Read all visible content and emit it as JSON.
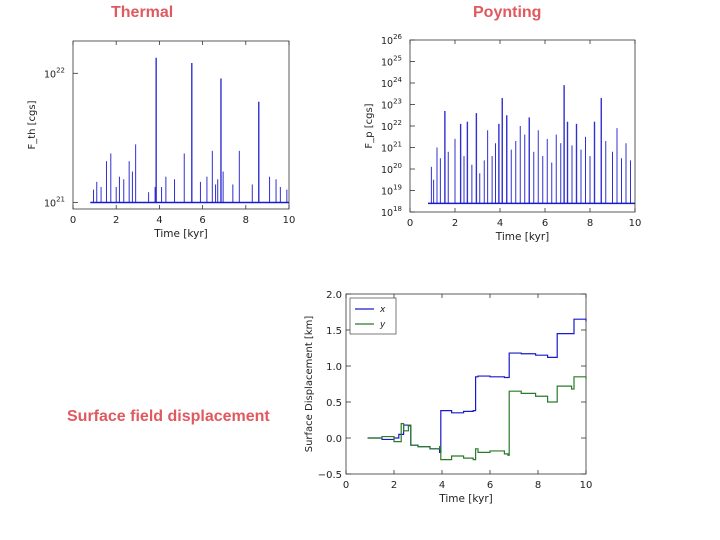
{
  "captions": {
    "thermal": "Thermal",
    "poynting": "Poynting",
    "displacement": "Surface field displacement"
  },
  "colors": {
    "caption": "#e0595e",
    "series_blue": "#1a1acc",
    "series_green": "#2a7a2a"
  },
  "chart_data": [
    {
      "id": "thermal",
      "type": "line",
      "title": "Thermal",
      "xlabel": "Time [kyr]",
      "ylabel": "F_th [cgs]",
      "yscale": "log",
      "xlim": [
        0,
        10
      ],
      "ylim_log10": [
        20.95,
        22.25
      ],
      "xticks": [
        0,
        2,
        4,
        6,
        8,
        10
      ],
      "yticks": [
        {
          "exp": 21,
          "label": "10",
          "sup": "21"
        },
        {
          "exp": 22,
          "label": "10",
          "sup": "22"
        }
      ],
      "baseline_log10": 21.0,
      "spikes": [
        {
          "x": 0.95,
          "v": 21.1
        },
        {
          "x": 1.1,
          "v": 21.16
        },
        {
          "x": 1.3,
          "v": 21.12
        },
        {
          "x": 1.55,
          "v": 21.32
        },
        {
          "x": 1.75,
          "v": 21.38
        },
        {
          "x": 2.0,
          "v": 21.12
        },
        {
          "x": 2.15,
          "v": 21.2
        },
        {
          "x": 2.35,
          "v": 21.18
        },
        {
          "x": 2.6,
          "v": 21.32
        },
        {
          "x": 2.75,
          "v": 21.24
        },
        {
          "x": 2.9,
          "v": 21.45
        },
        {
          "x": 3.5,
          "v": 21.08
        },
        {
          "x": 3.8,
          "v": 21.12
        },
        {
          "x": 3.85,
          "v": 22.12
        },
        {
          "x": 4.1,
          "v": 21.12
        },
        {
          "x": 4.3,
          "v": 21.2
        },
        {
          "x": 4.7,
          "v": 21.18
        },
        {
          "x": 5.15,
          "v": 21.38
        },
        {
          "x": 5.5,
          "v": 22.08
        },
        {
          "x": 5.9,
          "v": 21.16
        },
        {
          "x": 6.2,
          "v": 21.2
        },
        {
          "x": 6.45,
          "v": 21.4
        },
        {
          "x": 6.6,
          "v": 21.14
        },
        {
          "x": 6.7,
          "v": 21.18
        },
        {
          "x": 6.85,
          "v": 21.96
        },
        {
          "x": 6.95,
          "v": 21.24
        },
        {
          "x": 7.4,
          "v": 21.14
        },
        {
          "x": 7.7,
          "v": 21.4
        },
        {
          "x": 8.3,
          "v": 21.14
        },
        {
          "x": 8.6,
          "v": 21.78
        },
        {
          "x": 9.1,
          "v": 21.2
        },
        {
          "x": 9.4,
          "v": 21.18
        },
        {
          "x": 9.6,
          "v": 21.12
        },
        {
          "x": 9.9,
          "v": 21.1
        }
      ]
    },
    {
      "id": "poynting",
      "type": "line",
      "title": "Poynting",
      "xlabel": "Time [kyr]",
      "ylabel": "F_p [cgs]",
      "yscale": "log",
      "xlim": [
        0,
        10
      ],
      "ylim_log10": [
        18,
        26
      ],
      "xticks": [
        0,
        2,
        4,
        6,
        8,
        10
      ],
      "yticks": [
        {
          "exp": 18,
          "label": "10",
          "sup": "18"
        },
        {
          "exp": 19,
          "label": "10",
          "sup": "19"
        },
        {
          "exp": 20,
          "label": "10",
          "sup": "20"
        },
        {
          "exp": 21,
          "label": "10",
          "sup": "21"
        },
        {
          "exp": 22,
          "label": "10",
          "sup": "22"
        },
        {
          "exp": 23,
          "label": "10",
          "sup": "23"
        },
        {
          "exp": 24,
          "label": "10",
          "sup": "24"
        },
        {
          "exp": 25,
          "label": "10",
          "sup": "25"
        },
        {
          "exp": 26,
          "label": "10",
          "sup": "26"
        }
      ],
      "baseline_log10": 18.4,
      "spikes": [
        {
          "x": 0.95,
          "v": 20.1
        },
        {
          "x": 1.05,
          "v": 19.5
        },
        {
          "x": 1.2,
          "v": 21.0
        },
        {
          "x": 1.35,
          "v": 20.5
        },
        {
          "x": 1.55,
          "v": 22.7
        },
        {
          "x": 1.7,
          "v": 20.8
        },
        {
          "x": 2.0,
          "v": 21.4
        },
        {
          "x": 2.25,
          "v": 22.1
        },
        {
          "x": 2.4,
          "v": 20.6
        },
        {
          "x": 2.55,
          "v": 22.2
        },
        {
          "x": 2.75,
          "v": 20.2
        },
        {
          "x": 2.95,
          "v": 22.6
        },
        {
          "x": 3.1,
          "v": 19.8
        },
        {
          "x": 3.3,
          "v": 20.4
        },
        {
          "x": 3.45,
          "v": 21.8
        },
        {
          "x": 3.65,
          "v": 20.6
        },
        {
          "x": 3.8,
          "v": 21.2
        },
        {
          "x": 3.95,
          "v": 22.1
        },
        {
          "x": 4.1,
          "v": 23.3
        },
        {
          "x": 4.3,
          "v": 22.5
        },
        {
          "x": 4.5,
          "v": 20.9
        },
        {
          "x": 4.7,
          "v": 21.3
        },
        {
          "x": 4.9,
          "v": 22.0
        },
        {
          "x": 5.1,
          "v": 21.6
        },
        {
          "x": 5.3,
          "v": 22.4
        },
        {
          "x": 5.5,
          "v": 20.8
        },
        {
          "x": 5.7,
          "v": 21.8
        },
        {
          "x": 5.9,
          "v": 20.6
        },
        {
          "x": 6.1,
          "v": 21.4
        },
        {
          "x": 6.3,
          "v": 20.3
        },
        {
          "x": 6.5,
          "v": 21.6
        },
        {
          "x": 6.7,
          "v": 21.2
        },
        {
          "x": 6.85,
          "v": 23.9
        },
        {
          "x": 7.0,
          "v": 22.2
        },
        {
          "x": 7.2,
          "v": 21.1
        },
        {
          "x": 7.4,
          "v": 22.1
        },
        {
          "x": 7.6,
          "v": 20.9
        },
        {
          "x": 7.8,
          "v": 21.5
        },
        {
          "x": 8.0,
          "v": 20.6
        },
        {
          "x": 8.2,
          "v": 22.2
        },
        {
          "x": 8.5,
          "v": 23.3
        },
        {
          "x": 8.7,
          "v": 21.3
        },
        {
          "x": 9.0,
          "v": 20.8
        },
        {
          "x": 9.2,
          "v": 21.9
        },
        {
          "x": 9.4,
          "v": 20.5
        },
        {
          "x": 9.6,
          "v": 21.2
        },
        {
          "x": 9.8,
          "v": 20.4
        }
      ]
    },
    {
      "id": "displacement",
      "type": "line",
      "title": "Surface field displacement",
      "xlabel": "Time [kyr]",
      "ylabel": "Surface Displacement [km]",
      "xlim": [
        0,
        10
      ],
      "ylim": [
        -0.5,
        2.0
      ],
      "xticks": [
        0,
        2,
        4,
        6,
        8,
        10
      ],
      "yticks": [
        -0.5,
        0.0,
        0.5,
        1.0,
        1.5,
        2.0
      ],
      "ytick_labels": [
        "−0.5",
        "0.0",
        "0.5",
        "1.0",
        "1.5",
        "2.0"
      ],
      "legend": {
        "position": "top-left",
        "entries": [
          "x",
          "y"
        ]
      },
      "series": [
        {
          "name": "x",
          "color": "#1a1acc",
          "x": [
            0.9,
            1.5,
            2.0,
            2.2,
            2.4,
            2.6,
            2.7,
            3.0,
            3.5,
            3.9,
            3.95,
            4.4,
            4.9,
            5.3,
            5.4,
            5.5,
            6.0,
            6.6,
            6.75,
            6.8,
            7.3,
            7.9,
            8.4,
            8.8,
            9.4,
            9.5,
            10.0
          ],
          "y": [
            0.0,
            -0.02,
            0.0,
            0.05,
            0.18,
            0.17,
            -0.1,
            -0.12,
            -0.15,
            -0.2,
            0.38,
            0.35,
            0.37,
            0.38,
            0.85,
            0.86,
            0.85,
            0.84,
            0.84,
            1.18,
            1.17,
            1.15,
            1.12,
            1.45,
            1.45,
            1.65,
            1.62
          ]
        },
        {
          "name": "y",
          "color": "#2a7a2a",
          "x": [
            0.9,
            1.5,
            2.0,
            2.3,
            2.4,
            2.6,
            2.7,
            3.0,
            3.5,
            3.9,
            3.95,
            4.4,
            4.9,
            5.3,
            5.4,
            5.5,
            6.0,
            6.6,
            6.75,
            6.8,
            7.3,
            7.9,
            8.4,
            8.8,
            9.4,
            9.5,
            10.0
          ],
          "y": [
            0.0,
            0.02,
            -0.05,
            0.2,
            0.1,
            0.18,
            -0.1,
            -0.12,
            -0.15,
            -0.12,
            -0.3,
            -0.25,
            -0.28,
            -0.3,
            -0.15,
            -0.2,
            -0.18,
            -0.22,
            -0.24,
            0.65,
            0.62,
            0.58,
            0.5,
            0.72,
            0.68,
            0.85,
            0.82
          ]
        }
      ]
    }
  ]
}
